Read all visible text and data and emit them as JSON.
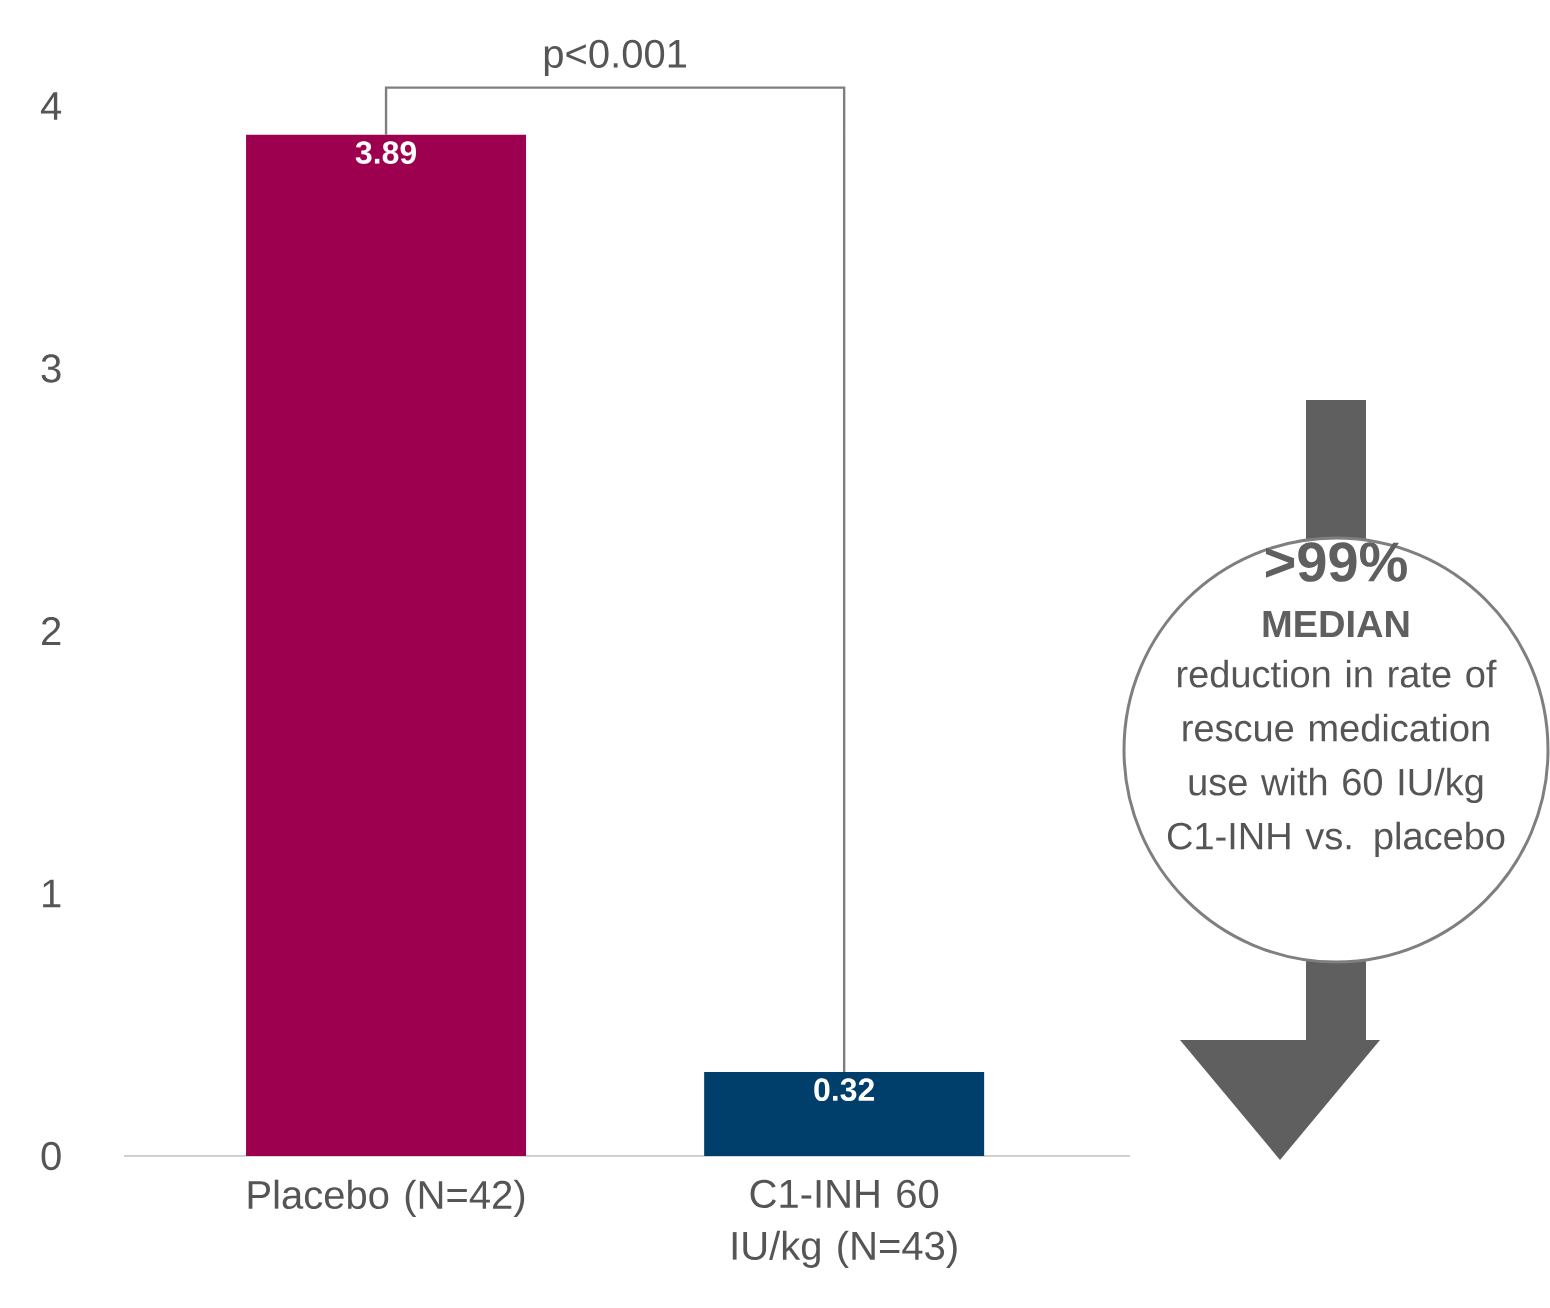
{
  "chart_data": {
    "type": "bar",
    "categories": [
      "Placebo (N=42)",
      "C1-INH 60 IU/kg (N=43)"
    ],
    "values": [
      3.89,
      0.32
    ],
    "colors": [
      "#9e0050",
      "#003f6b"
    ],
    "data_labels": true,
    "ylim": [
      0,
      4
    ],
    "yticks": [
      0,
      1,
      2,
      3,
      4
    ],
    "grid": false,
    "annotations": [
      "p<0.001",
      ">99%",
      "MEDIAN",
      "reduction in rate of rescue medication use with 60 IU/kg C1-INH vs. placebo"
    ]
  }
}
